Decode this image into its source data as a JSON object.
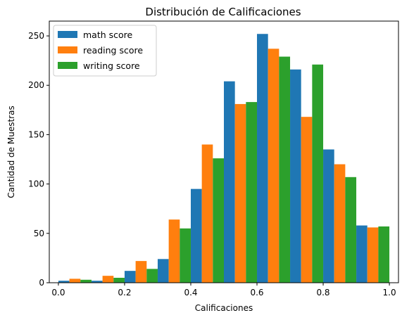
{
  "chart_data": {
    "type": "bar",
    "title": "Distribución de Calificaciones",
    "xlabel": "Calificaciones",
    "ylabel": "Cantidad de Muestras",
    "xlim": [
      -0.0275,
      1.0275
    ],
    "ylim": [
      0,
      265
    ],
    "xticks": [
      "0.0",
      "0.2",
      "0.4",
      "0.6",
      "0.8",
      "1.0"
    ],
    "yticks": [
      "0",
      "50",
      "100",
      "150",
      "200",
      "250"
    ],
    "bin_edges": [
      0.0,
      0.1,
      0.2,
      0.3,
      0.4,
      0.5,
      0.6,
      0.7,
      0.8,
      0.9,
      1.0
    ],
    "legend_position": "top-left",
    "series": [
      {
        "name": "math score",
        "color": "#1f77b4",
        "values": [
          2,
          2,
          12,
          24,
          95,
          204,
          252,
          216,
          135,
          58
        ]
      },
      {
        "name": "reading score",
        "color": "#ff7f0e",
        "values": [
          4,
          7,
          22,
          64,
          140,
          181,
          237,
          168,
          120,
          56
        ]
      },
      {
        "name": "writing score",
        "color": "#2ca02c",
        "values": [
          3,
          5,
          14,
          55,
          126,
          183,
          229,
          221,
          107,
          57
        ]
      }
    ]
  }
}
